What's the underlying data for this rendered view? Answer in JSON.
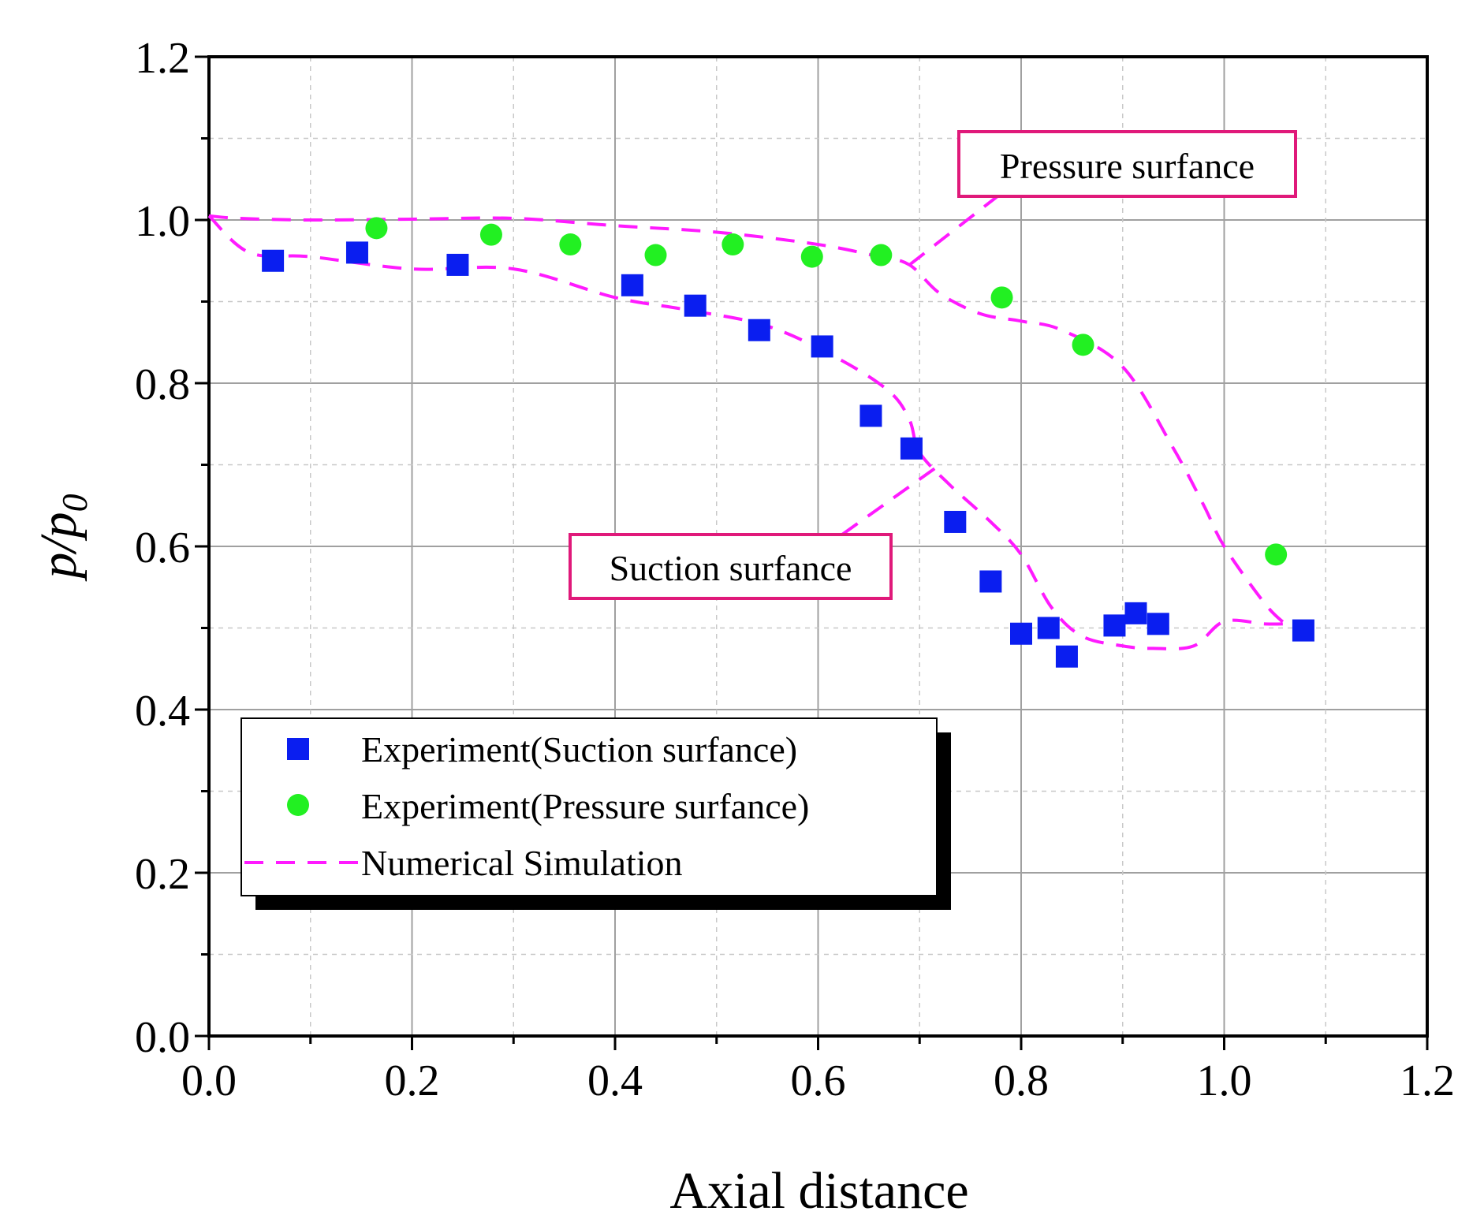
{
  "chart_data": {
    "type": "scatter",
    "xlabel": "Axial distance",
    "ylabel": "p/p0",
    "xlim": [
      0.0,
      1.2
    ],
    "ylim": [
      0.0,
      1.2
    ],
    "xticks": [
      "0.0",
      "0.2",
      "0.4",
      "0.6",
      "0.8",
      "1.0",
      "1.2"
    ],
    "yticks": [
      "0.0",
      "0.2",
      "0.4",
      "0.6",
      "0.8",
      "1.0",
      "1.2"
    ],
    "grid": true,
    "legend_position": "bottom-left",
    "colors": {
      "suction": "#0a1ef0",
      "pressure": "#22f022",
      "simulation": "#ff1aff",
      "annotation_box": "#e0197a"
    },
    "series": [
      {
        "name": "Experiment(Suction surfance)",
        "marker": "square",
        "x": [
          0.063,
          0.146,
          0.245,
          0.417,
          0.479,
          0.542,
          0.604,
          0.652,
          0.692,
          0.735,
          0.77,
          0.8,
          0.827,
          0.845,
          0.892,
          0.913,
          0.935,
          1.078
        ],
        "y": [
          0.95,
          0.96,
          0.945,
          0.92,
          0.895,
          0.865,
          0.845,
          0.76,
          0.72,
          0.63,
          0.557,
          0.493,
          0.5,
          0.465,
          0.503,
          0.518,
          0.505,
          0.497
        ]
      },
      {
        "name": "Experiment(Pressure surfance)",
        "marker": "circle",
        "x": [
          0.165,
          0.278,
          0.356,
          0.44,
          0.516,
          0.594,
          0.662,
          0.781,
          0.861,
          1.051
        ],
        "y": [
          0.99,
          0.982,
          0.97,
          0.957,
          0.97,
          0.955,
          0.957,
          0.905,
          0.847,
          0.59
        ]
      },
      {
        "name": "Numerical Simulation",
        "style": "dashed",
        "x": [
          0.0,
          0.03,
          0.1,
          0.2,
          0.3,
          0.4,
          0.5,
          0.6,
          0.66,
          0.69,
          0.72,
          0.76,
          0.8,
          0.84,
          0.9,
          0.95,
          0.98,
          1.0,
          1.04,
          1.06
        ],
        "y": [
          1.005,
          1.002,
          1.0,
          1.001,
          1.002,
          0.993,
          0.985,
          0.97,
          0.955,
          0.945,
          0.91,
          0.885,
          0.876,
          0.865,
          0.82,
          0.72,
          0.65,
          0.6,
          0.53,
          0.505
        ]
      },
      {
        "x": [
          0.0,
          0.04,
          0.1,
          0.2,
          0.3,
          0.4,
          0.47,
          0.55,
          0.62,
          0.67,
          0.69,
          0.7,
          0.73,
          0.77,
          0.8,
          0.83,
          0.86,
          0.9,
          0.93,
          0.97,
          1.0,
          1.04,
          1.06
        ],
        "y": [
          1.005,
          0.96,
          0.955,
          0.94,
          0.94,
          0.905,
          0.89,
          0.87,
          0.83,
          0.79,
          0.755,
          0.715,
          0.675,
          0.63,
          0.59,
          0.525,
          0.49,
          0.478,
          0.475,
          0.478,
          0.508,
          0.505,
          0.505
        ]
      }
    ],
    "annotations": [
      {
        "text": "Pressure surfance"
      },
      {
        "text": "Suction surfance"
      }
    ]
  }
}
